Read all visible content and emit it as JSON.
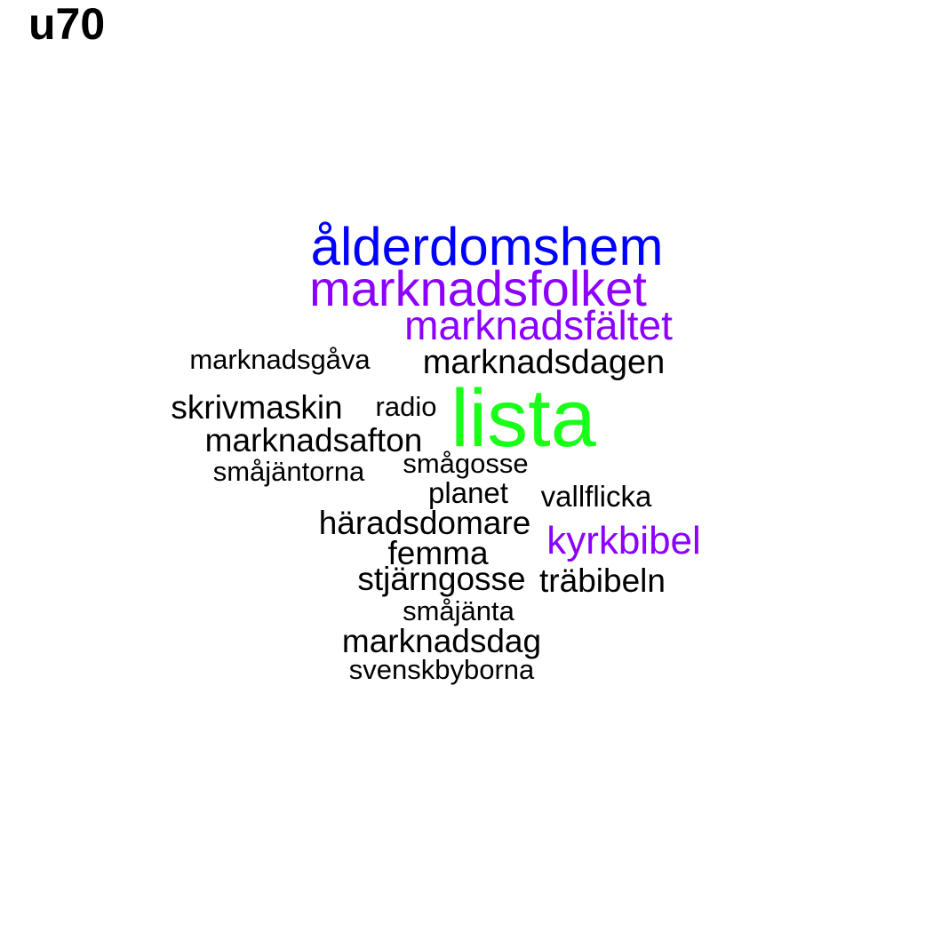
{
  "title": "u70",
  "colors": {
    "blue": "#0000ff",
    "purple": "#8b00ff",
    "green": "#1aff1a",
    "black": "#000000"
  },
  "words": [
    {
      "id": "w01",
      "text": "ålderdomshem",
      "color": "#0000ff"
    },
    {
      "id": "w02",
      "text": "marknadsfolket",
      "color": "#8b00ff"
    },
    {
      "id": "w03",
      "text": "marknadsfältet",
      "color": "#8b00ff"
    },
    {
      "id": "w04",
      "text": "marknadsgåva",
      "color": "#000000"
    },
    {
      "id": "w05",
      "text": "marknadsdagen",
      "color": "#000000"
    },
    {
      "id": "w06",
      "text": "skrivmaskin",
      "color": "#000000"
    },
    {
      "id": "w07",
      "text": "radio",
      "color": "#000000"
    },
    {
      "id": "w08",
      "text": "lista",
      "color": "#1aff1a"
    },
    {
      "id": "w09",
      "text": "marknadsafton",
      "color": "#000000"
    },
    {
      "id": "w10",
      "text": "småjäntorna",
      "color": "#000000"
    },
    {
      "id": "w11",
      "text": "smågosse",
      "color": "#000000"
    },
    {
      "id": "w12",
      "text": "planet",
      "color": "#000000"
    },
    {
      "id": "w13",
      "text": "vallflicka",
      "color": "#000000"
    },
    {
      "id": "w14",
      "text": "häradsdomare",
      "color": "#000000"
    },
    {
      "id": "w15",
      "text": "kyrkbibel",
      "color": "#8b00ff"
    },
    {
      "id": "w16",
      "text": "femma",
      "color": "#000000"
    },
    {
      "id": "w17",
      "text": "stjärngosse",
      "color": "#000000"
    },
    {
      "id": "w18",
      "text": "träbibeln",
      "color": "#000000"
    },
    {
      "id": "w19",
      "text": "småjänta",
      "color": "#000000"
    },
    {
      "id": "w20",
      "text": "marknadsdag",
      "color": "#000000"
    },
    {
      "id": "w21",
      "text": "svenskbyborna",
      "color": "#000000"
    }
  ]
}
